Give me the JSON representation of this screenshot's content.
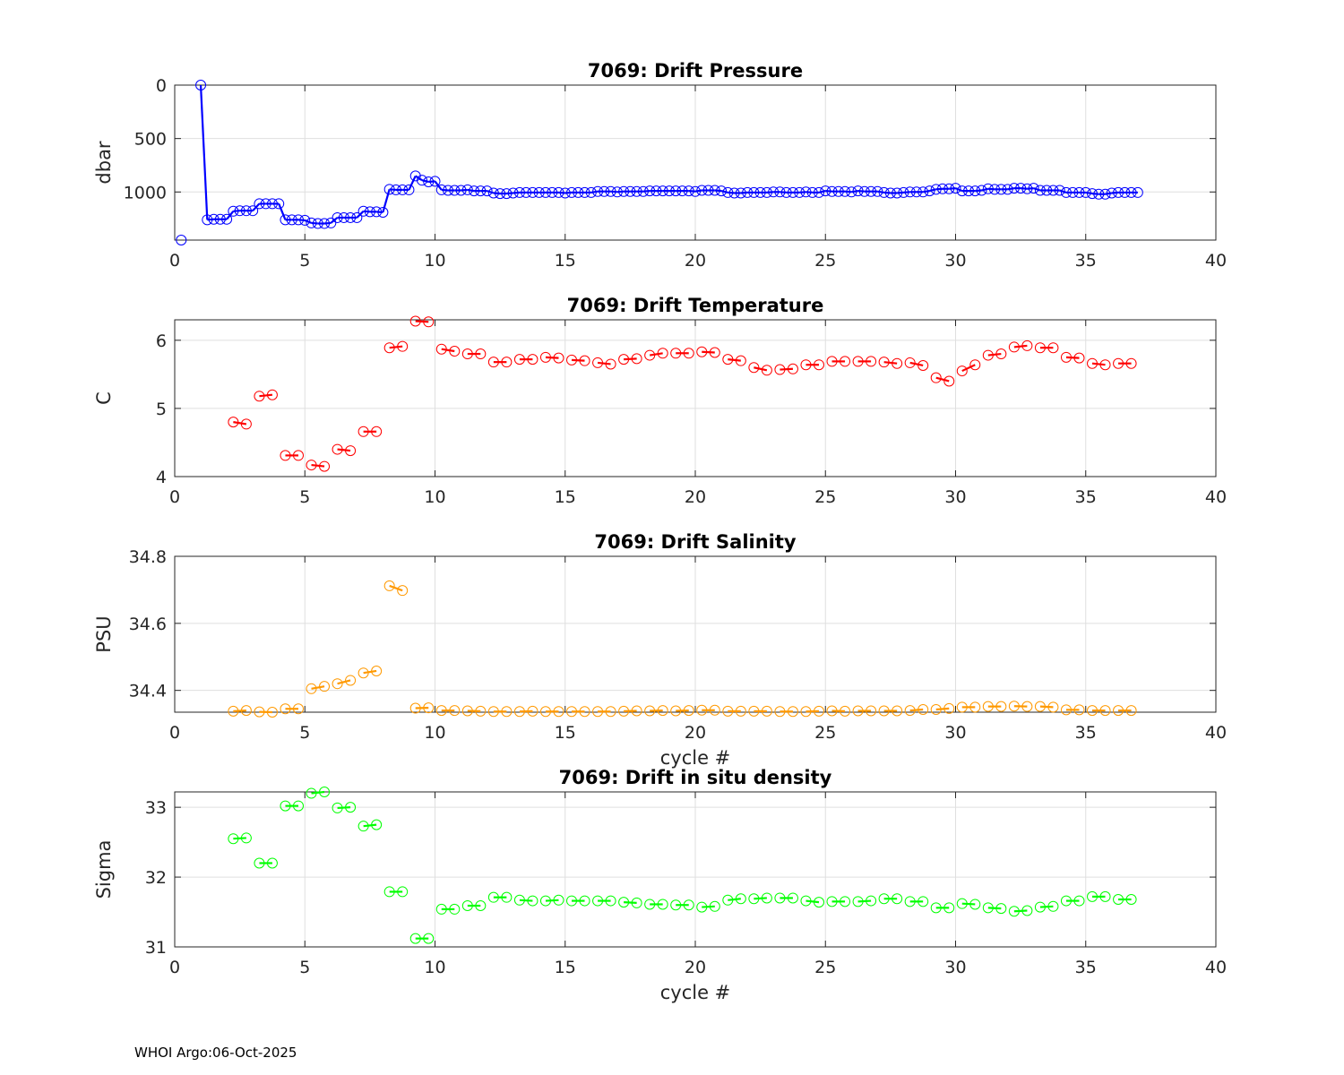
{
  "footer": "WHOI Argo:06-Oct-2025",
  "chart_data": [
    {
      "type": "scatter",
      "title": "7069: Drift Pressure",
      "xlabel": "",
      "ylabel": "dbar",
      "xlim": [
        0,
        40
      ],
      "ylim": [
        0,
        1450
      ],
      "y_reversed": true,
      "xticks": [
        0,
        5,
        10,
        15,
        20,
        25,
        30,
        35,
        40
      ],
      "yticks": [
        0,
        500,
        1000
      ],
      "grid": true,
      "color": "#0000ff",
      "x": [
        0.25,
        1.0,
        1.25,
        1.5,
        1.75,
        2.0,
        2.25,
        2.5,
        2.75,
        3.0,
        3.25,
        3.5,
        3.75,
        4.0,
        4.25,
        4.5,
        4.75,
        5.0,
        5.25,
        5.5,
        5.75,
        6.0,
        6.25,
        6.5,
        6.75,
        7.0,
        7.25,
        7.5,
        7.75,
        8.0,
        8.25,
        8.5,
        8.75,
        9.0,
        9.25,
        9.5,
        9.75,
        10.0,
        10.25,
        10.5,
        10.75,
        11.0,
        11.25,
        11.5,
        11.75,
        12.0,
        12.25,
        12.5,
        12.75,
        13.0,
        13.25,
        13.5,
        13.75,
        14.0,
        14.25,
        14.5,
        14.75,
        15.0,
        15.25,
        15.5,
        15.75,
        16.0,
        16.25,
        16.5,
        16.75,
        17.0,
        17.25,
        17.5,
        17.75,
        18.0,
        18.25,
        18.5,
        18.75,
        19.0,
        19.25,
        19.5,
        19.75,
        20.0,
        20.25,
        20.5,
        20.75,
        21.0,
        21.25,
        21.5,
        21.75,
        22.0,
        22.25,
        22.5,
        22.75,
        23.0,
        23.25,
        23.5,
        23.75,
        24.0,
        24.25,
        24.5,
        24.75,
        25.0,
        25.25,
        25.5,
        25.75,
        26.0,
        26.25,
        26.5,
        26.75,
        27.0,
        27.25,
        27.5,
        27.75,
        28.0,
        28.25,
        28.5,
        28.75,
        29.0,
        29.25,
        29.5,
        29.75,
        30.0,
        30.25,
        30.5,
        30.75,
        31.0,
        31.25,
        31.5,
        31.75,
        32.0,
        32.25,
        32.5,
        32.75,
        33.0,
        33.25,
        33.5,
        33.75,
        34.0,
        34.25,
        34.5,
        34.75,
        35.0,
        35.25,
        35.5,
        35.75,
        36.0,
        36.25,
        36.5,
        36.75,
        37.0
      ],
      "y": [
        1450,
        0,
        1260,
        1255,
        1255,
        1255,
        1180,
        1175,
        1175,
        1175,
        1110,
        1110,
        1110,
        1110,
        1260,
        1260,
        1260,
        1265,
        1290,
        1295,
        1295,
        1290,
        1240,
        1240,
        1240,
        1240,
        1180,
        1185,
        1185,
        1190,
        975,
        980,
        980,
        980,
        850,
        890,
        905,
        900,
        980,
        985,
        985,
        985,
        980,
        990,
        990,
        990,
        1010,
        1015,
        1015,
        1010,
        1005,
        1005,
        1005,
        1005,
        1005,
        1005,
        1005,
        1010,
        1005,
        1005,
        1005,
        1005,
        995,
        995,
        995,
        1000,
        995,
        995,
        995,
        995,
        990,
        990,
        990,
        990,
        990,
        990,
        990,
        995,
        985,
        985,
        985,
        990,
        1005,
        1010,
        1010,
        1005,
        1005,
        1005,
        1005,
        1000,
        1000,
        1005,
        1005,
        1005,
        1000,
        1005,
        1005,
        990,
        995,
        995,
        995,
        1000,
        990,
        995,
        995,
        995,
        1005,
        1010,
        1010,
        1005,
        1000,
        1000,
        1000,
        990,
        975,
        970,
        970,
        965,
        990,
        990,
        990,
        985,
        970,
        975,
        975,
        975,
        965,
        965,
        970,
        965,
        985,
        985,
        985,
        985,
        1005,
        1005,
        1005,
        1005,
        1015,
        1020,
        1020,
        1010,
        1005,
        1005,
        1005,
        1005
      ]
    },
    {
      "type": "scatter",
      "title": "7069: Drift Temperature",
      "xlabel": "",
      "ylabel": "C",
      "xlim": [
        0,
        40
      ],
      "ylim": [
        4,
        6.3
      ],
      "xticks": [
        0,
        5,
        10,
        15,
        20,
        25,
        30,
        35,
        40
      ],
      "yticks": [
        4,
        5,
        6
      ],
      "grid": true,
      "color": "#ff0000",
      "x": [
        2.25,
        2.75,
        3.25,
        3.75,
        4.25,
        4.75,
        5.25,
        5.75,
        6.25,
        6.75,
        7.25,
        7.75,
        8.25,
        8.75,
        9.25,
        9.75,
        10.25,
        10.75,
        11.25,
        11.75,
        12.25,
        12.75,
        13.25,
        13.75,
        14.25,
        14.75,
        15.25,
        15.75,
        16.25,
        16.75,
        17.25,
        17.75,
        18.25,
        18.75,
        19.25,
        19.75,
        20.25,
        20.75,
        21.25,
        21.75,
        22.25,
        22.75,
        23.25,
        23.75,
        24.25,
        24.75,
        25.25,
        25.75,
        26.25,
        26.75,
        27.25,
        27.75,
        28.25,
        28.75,
        29.25,
        29.75,
        30.25,
        30.75,
        31.25,
        31.75,
        32.25,
        32.75,
        33.25,
        33.75,
        34.25,
        34.75,
        35.25,
        35.75,
        36.25,
        36.75
      ],
      "y": [
        4.8,
        4.77,
        5.18,
        5.2,
        4.31,
        4.31,
        4.17,
        4.15,
        4.4,
        4.38,
        4.66,
        4.66,
        5.89,
        5.91,
        6.28,
        6.27,
        5.87,
        5.84,
        5.8,
        5.8,
        5.68,
        5.68,
        5.72,
        5.72,
        5.75,
        5.74,
        5.71,
        5.7,
        5.67,
        5.65,
        5.72,
        5.73,
        5.78,
        5.81,
        5.81,
        5.81,
        5.83,
        5.82,
        5.72,
        5.7,
        5.6,
        5.56,
        5.57,
        5.58,
        5.64,
        5.64,
        5.69,
        5.69,
        5.69,
        5.69,
        5.68,
        5.66,
        5.67,
        5.63,
        5.45,
        5.4,
        5.55,
        5.64,
        5.78,
        5.8,
        5.9,
        5.92,
        5.89,
        5.89,
        5.75,
        5.74,
        5.66,
        5.64,
        5.66,
        5.66
      ]
    },
    {
      "type": "scatter",
      "title": "7069: Drift Salinity",
      "xlabel": "cycle #",
      "ylabel": "PSU",
      "xlim": [
        0,
        40
      ],
      "ylim": [
        34.335,
        34.8
      ],
      "xticks": [
        0,
        5,
        10,
        15,
        20,
        25,
        30,
        35,
        40
      ],
      "yticks": [
        34.4,
        34.6,
        34.8
      ],
      "grid": true,
      "color": "#ff9900",
      "x": [
        2.25,
        2.75,
        3.25,
        3.75,
        4.25,
        4.75,
        5.25,
        5.75,
        6.25,
        6.75,
        7.25,
        7.75,
        8.25,
        8.75,
        9.25,
        9.75,
        10.25,
        10.75,
        11.25,
        11.75,
        12.25,
        12.75,
        13.25,
        13.75,
        14.25,
        14.75,
        15.25,
        15.75,
        16.25,
        16.75,
        17.25,
        17.75,
        18.25,
        18.75,
        19.25,
        19.75,
        20.25,
        20.75,
        21.25,
        21.75,
        22.25,
        22.75,
        23.25,
        23.75,
        24.25,
        24.75,
        25.25,
        25.75,
        26.25,
        26.75,
        27.25,
        27.75,
        28.25,
        28.75,
        29.25,
        29.75,
        30.25,
        30.75,
        31.25,
        31.75,
        32.25,
        32.75,
        33.25,
        33.75,
        34.25,
        34.75,
        35.25,
        35.75,
        36.25,
        36.75
      ],
      "y": [
        34.338,
        34.34,
        34.336,
        34.335,
        34.345,
        34.345,
        34.405,
        34.412,
        34.42,
        34.43,
        34.452,
        34.458,
        34.712,
        34.698,
        34.347,
        34.348,
        34.34,
        34.34,
        34.339,
        34.338,
        34.337,
        34.337,
        34.337,
        34.338,
        34.337,
        34.337,
        34.337,
        34.337,
        34.337,
        34.337,
        34.338,
        34.339,
        34.339,
        34.34,
        34.339,
        34.34,
        34.341,
        34.341,
        34.338,
        34.338,
        34.338,
        34.338,
        34.337,
        34.337,
        34.337,
        34.338,
        34.339,
        34.338,
        34.339,
        34.339,
        34.339,
        34.339,
        34.34,
        34.343,
        34.343,
        34.346,
        34.35,
        34.35,
        34.352,
        34.352,
        34.353,
        34.352,
        34.352,
        34.35,
        34.342,
        34.342,
        34.34,
        34.34,
        34.34,
        34.34
      ]
    },
    {
      "type": "scatter",
      "title": "7069: Drift in situ density",
      "xlabel": "cycle #",
      "ylabel": "Sigma",
      "xlim": [
        0,
        40
      ],
      "ylim": [
        31,
        33.22
      ],
      "xticks": [
        0,
        5,
        10,
        15,
        20,
        25,
        30,
        35,
        40
      ],
      "yticks": [
        31,
        32,
        33
      ],
      "grid": true,
      "color": "#00ff00",
      "x": [
        2.25,
        2.75,
        3.25,
        3.75,
        4.25,
        4.75,
        5.25,
        5.75,
        6.25,
        6.75,
        7.25,
        7.75,
        8.25,
        8.75,
        9.25,
        9.75,
        10.25,
        10.75,
        11.25,
        11.75,
        12.25,
        12.75,
        13.25,
        13.75,
        14.25,
        14.75,
        15.25,
        15.75,
        16.25,
        16.75,
        17.25,
        17.75,
        18.25,
        18.75,
        19.25,
        19.75,
        20.25,
        20.75,
        21.25,
        21.75,
        22.25,
        22.75,
        23.25,
        23.75,
        24.25,
        24.75,
        25.25,
        25.75,
        26.25,
        26.75,
        27.25,
        27.75,
        28.25,
        28.75,
        29.25,
        29.75,
        30.25,
        30.75,
        31.25,
        31.75,
        32.25,
        32.75,
        33.25,
        33.75,
        34.25,
        34.75,
        35.25,
        35.75,
        36.25,
        36.75
      ],
      "y": [
        32.55,
        32.56,
        32.2,
        32.2,
        33.02,
        33.02,
        33.2,
        33.22,
        32.99,
        33.0,
        32.73,
        32.75,
        31.79,
        31.79,
        31.12,
        31.12,
        31.54,
        31.54,
        31.59,
        31.59,
        31.71,
        31.71,
        31.67,
        31.66,
        31.66,
        31.67,
        31.66,
        31.66,
        31.66,
        31.66,
        31.64,
        31.63,
        31.61,
        31.61,
        31.6,
        31.6,
        31.57,
        31.58,
        31.67,
        31.69,
        31.69,
        31.7,
        31.7,
        31.7,
        31.66,
        31.64,
        31.65,
        31.65,
        31.65,
        31.66,
        31.69,
        31.69,
        31.65,
        31.65,
        31.56,
        31.56,
        31.62,
        31.61,
        31.56,
        31.55,
        31.51,
        31.52,
        31.57,
        31.58,
        31.66,
        31.66,
        31.72,
        31.72,
        31.68,
        31.68
      ]
    }
  ]
}
